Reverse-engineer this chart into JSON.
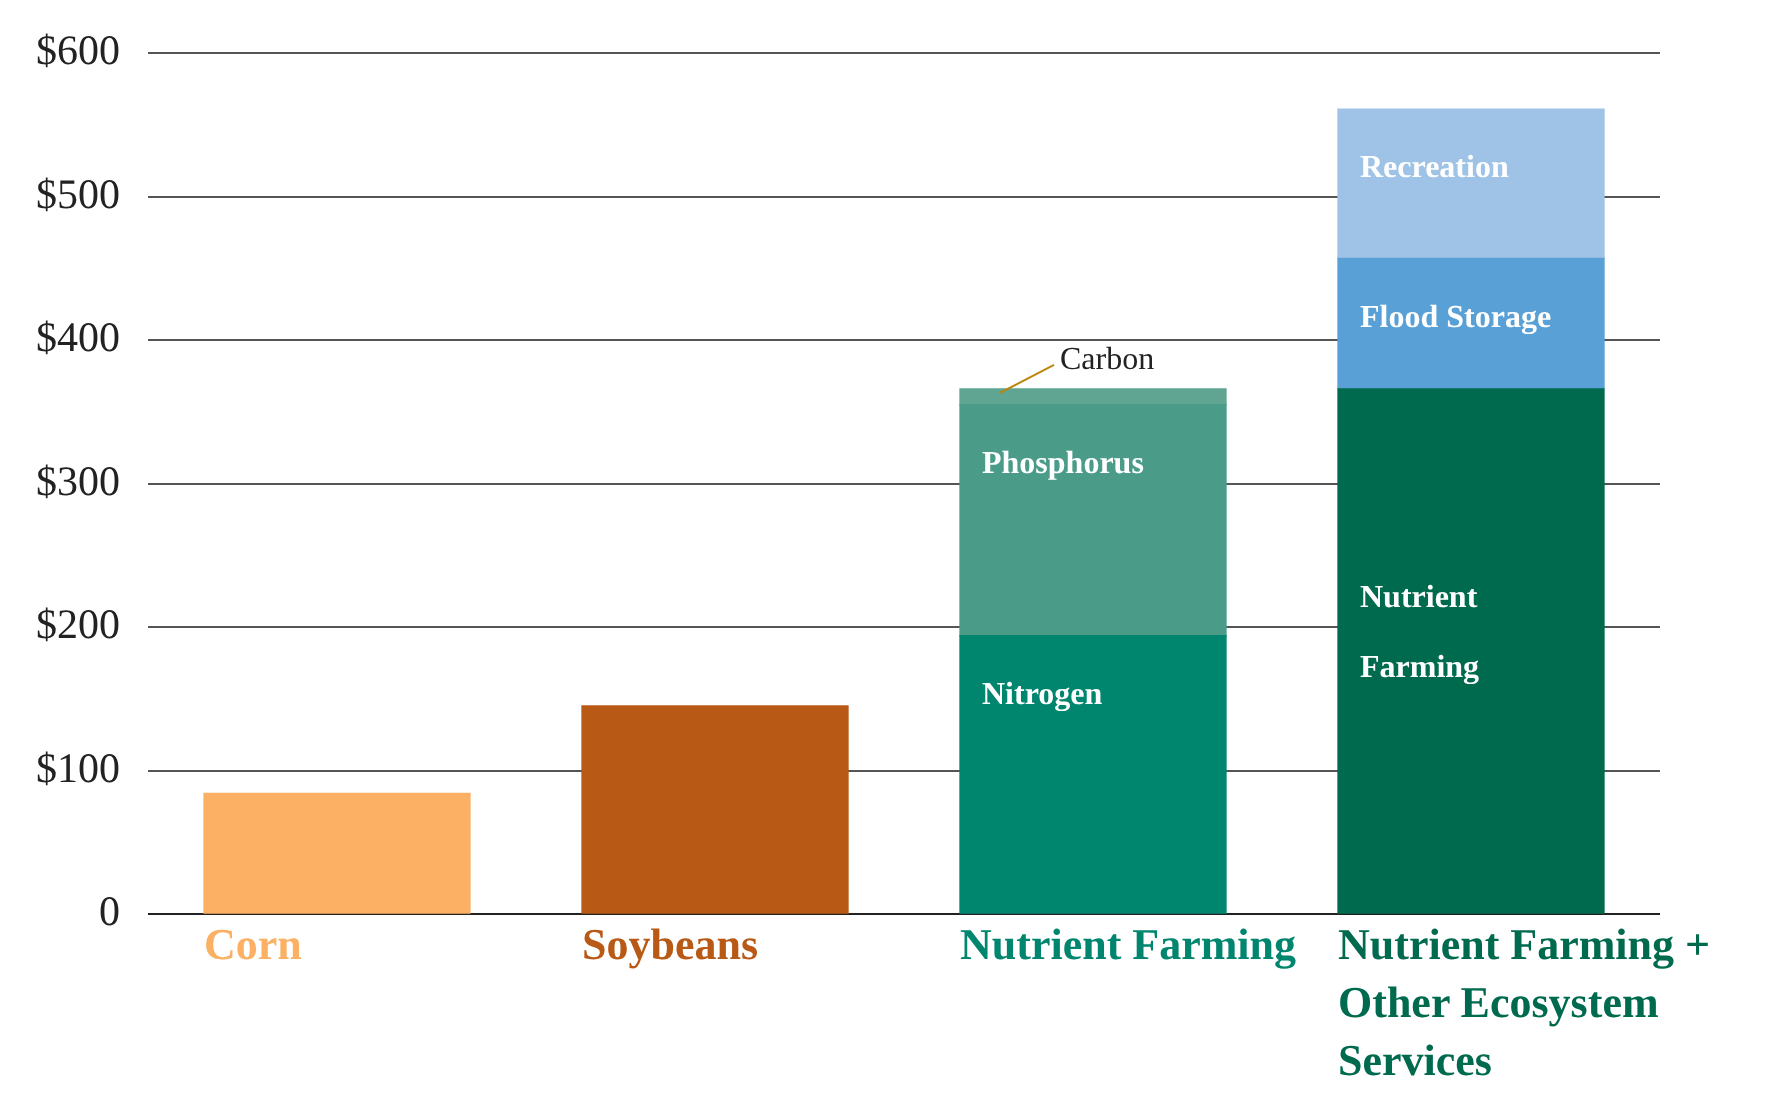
{
  "chart_data": {
    "type": "bar",
    "stacked": true,
    "categories": [
      "Corn",
      "Soybeans",
      "Nutrient Farming",
      "Nutrient Farming + Other Ecosystem Services"
    ],
    "series": [
      {
        "colors": [
          "#fbb063",
          "#b85915",
          null,
          null
        ],
        "values": [
          84,
          145,
          null,
          null
        ]
      },
      {
        "name": "Nitrogen",
        "color": "#00856f",
        "values": [
          null,
          null,
          194,
          null
        ]
      },
      {
        "name": "Phosphorus",
        "color": "#4a9c89",
        "values": [
          null,
          null,
          161,
          null
        ]
      },
      {
        "name": "Carbon",
        "color": "#5fa592",
        "values": [
          null,
          null,
          11,
          null
        ]
      },
      {
        "name": "Nutrient Farming",
        "color": "#006a4e",
        "values": [
          null,
          null,
          null,
          366
        ]
      },
      {
        "name": "Flood Storage",
        "color": "#58a0d5",
        "values": [
          null,
          null,
          null,
          91
        ]
      },
      {
        "name": "Recreation",
        "color": "#9ec3e6",
        "values": [
          null,
          null,
          null,
          104
        ]
      }
    ],
    "ylim": [
      0,
      600
    ],
    "yticks": [
      0,
      {
        "value": 100,
        "label": "$100"
      },
      {
        "value": 200,
        "label": "$200"
      },
      {
        "value": 300,
        "label": "$300"
      },
      {
        "value": 400,
        "label": "$400"
      },
      {
        "value": 500,
        "label": "$500"
      },
      {
        "value": 600,
        "label": "$600"
      }
    ],
    "grid": "y",
    "legend": false
  }
}
